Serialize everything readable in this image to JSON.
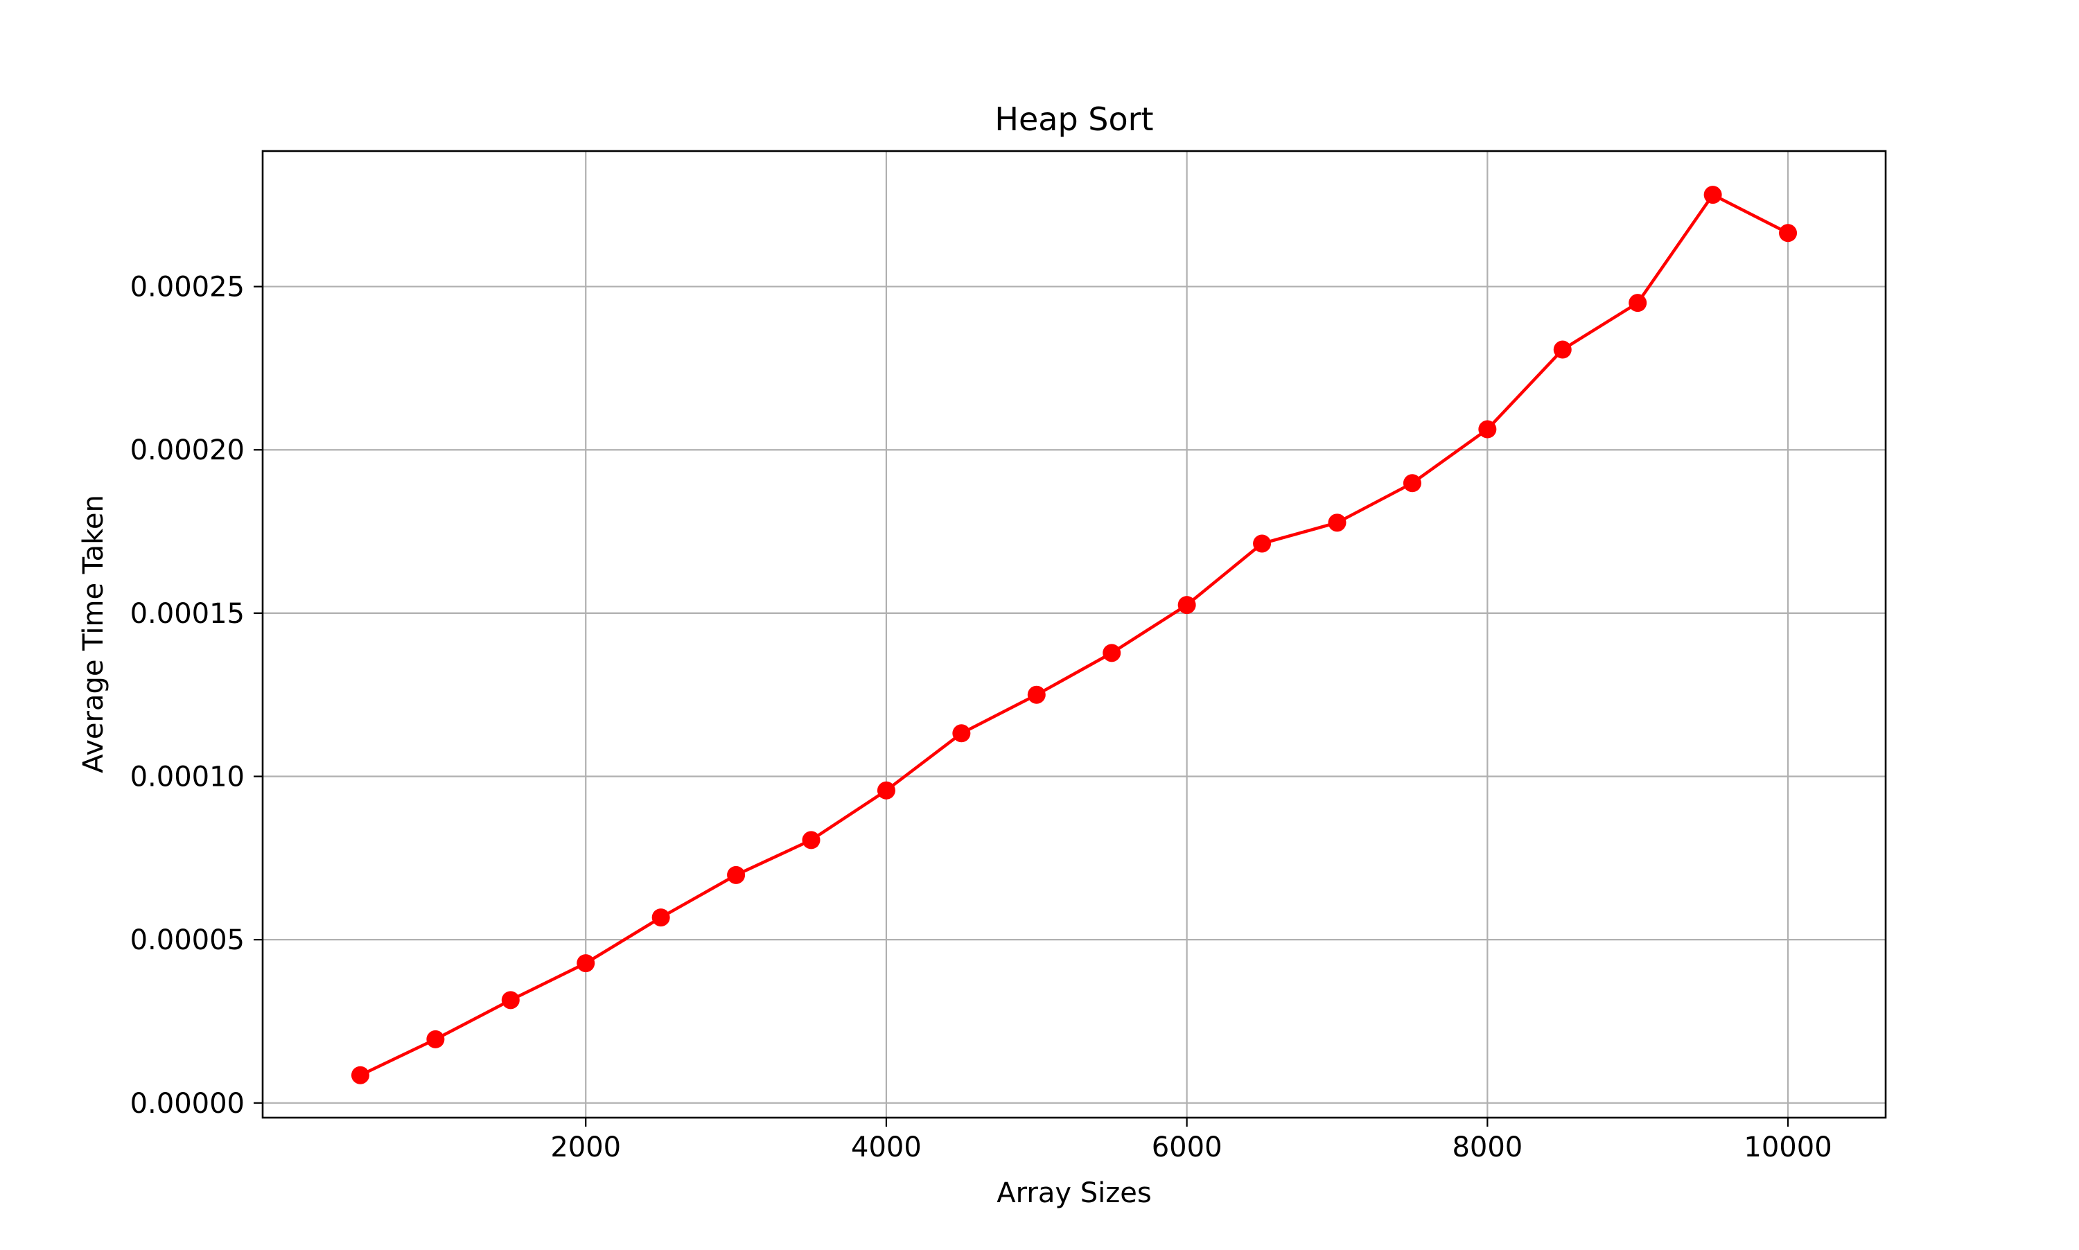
{
  "chart_data": {
    "type": "line",
    "title": "Heap Sort",
    "xlabel": "Array Sizes",
    "ylabel": "Average Time Taken",
    "xlim": [
      -150,
      10650
    ],
    "ylim": [
      -4.5e-06,
      0.0002915
    ],
    "xticks": [
      2000,
      4000,
      6000,
      8000,
      10000
    ],
    "xtick_labels": [
      "2000",
      "4000",
      "6000",
      "8000",
      "10000"
    ],
    "yticks": [
      0.0,
      5e-05,
      0.0001,
      0.00015,
      0.0002,
      0.00025
    ],
    "ytick_labels": [
      "0.00000",
      "0.00005",
      "0.00010",
      "0.00015",
      "0.00020",
      "0.00025"
    ],
    "grid": true,
    "series": [
      {
        "name": "",
        "color": "#ff0000",
        "marker": "circle",
        "x": [
          500,
          1000,
          1500,
          2000,
          2500,
          3000,
          3500,
          4000,
          4500,
          5000,
          5500,
          6000,
          6500,
          7000,
          7500,
          8000,
          8500,
          9000,
          9500,
          10000
        ],
        "y": [
          8.5e-06,
          1.95e-05,
          3.15e-05,
          4.28e-05,
          5.68e-05,
          6.98e-05,
          8.05e-05,
          9.57e-05,
          0.0001132,
          0.000125,
          0.0001378,
          0.0001525,
          0.0001713,
          0.0001777,
          0.0001898,
          0.0002063,
          0.0002307,
          0.000245,
          0.0002781,
          0.0002664
        ]
      }
    ]
  },
  "colors": {
    "line": "#ff0000",
    "grid": "#b0b0b0",
    "axes": "#000000",
    "background": "#ffffff"
  }
}
